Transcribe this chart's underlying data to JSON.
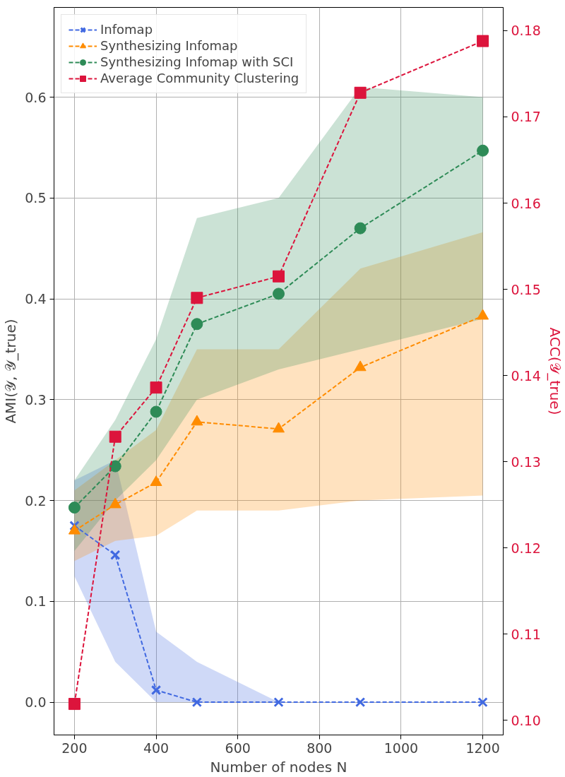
{
  "chart_data": {
    "type": "line",
    "xlabel": "Number of nodes N",
    "ylabel": "AMI(𝒴, 𝒴_true)",
    "y2label": "ACC(𝒴_true)",
    "x": [
      200,
      300,
      400,
      500,
      700,
      900,
      1200
    ],
    "xlim": [
      150,
      1250
    ],
    "xticks": [
      200,
      400,
      600,
      800,
      1000,
      1200
    ],
    "ylim": [
      -0.0325,
      0.689
    ],
    "yticks": [
      {
        "value": 0,
        "label": "0.0"
      },
      0.1,
      0.2,
      0.3,
      0.4,
      0.5,
      0.6
    ],
    "y2lim": [
      0.0983,
      0.1827
    ],
    "y2ticks": [
      {
        "value": 0.1,
        "label": "0.10"
      },
      0.11,
      0.12,
      0.13,
      0.14,
      0.15,
      0.16,
      0.17,
      0.18
    ],
    "grid": true,
    "legend": "top left",
    "line_style": "dashed",
    "series": [
      {
        "name": "Infomap",
        "color": "#4169e1",
        "marker": "cross",
        "values": [
          0.175,
          0.146,
          0.012,
          0.0,
          0.0,
          0.0,
          0.0
        ],
        "lower": [
          0.125,
          0.04,
          0.0,
          0.0,
          0.0,
          0.0,
          0.0
        ],
        "upper": [
          0.22,
          0.24,
          0.07,
          0.04,
          0.0,
          0.0,
          0.0
        ]
      },
      {
        "name": "Synthesizing Infomap",
        "color": "#ff8c00",
        "marker": "triangle",
        "values": [
          0.17,
          0.196,
          0.218,
          0.278,
          0.271,
          0.332,
          0.383
        ],
        "lower": [
          0.14,
          0.16,
          0.165,
          0.19,
          0.19,
          0.2,
          0.205
        ],
        "upper": [
          0.21,
          0.24,
          0.27,
          0.35,
          0.35,
          0.43,
          0.466
        ]
      },
      {
        "name": "Synthesizing Infomap with SCI",
        "color": "#2e8b57",
        "marker": "circle",
        "values": [
          0.193,
          0.234,
          0.288,
          0.375,
          0.405,
          0.47,
          0.547
        ],
        "lower": [
          0.15,
          0.2,
          0.24,
          0.3,
          0.33,
          0.35,
          0.38
        ],
        "upper": [
          0.22,
          0.28,
          0.36,
          0.48,
          0.5,
          0.61,
          0.6
        ]
      },
      {
        "name": "Average Community Clustering",
        "color": "#dc143c",
        "marker": "square",
        "axis": "y2",
        "values": [
          0.1019,
          0.1329,
          0.1386,
          0.149,
          0.1515,
          0.1728,
          0.1788
        ]
      }
    ]
  }
}
